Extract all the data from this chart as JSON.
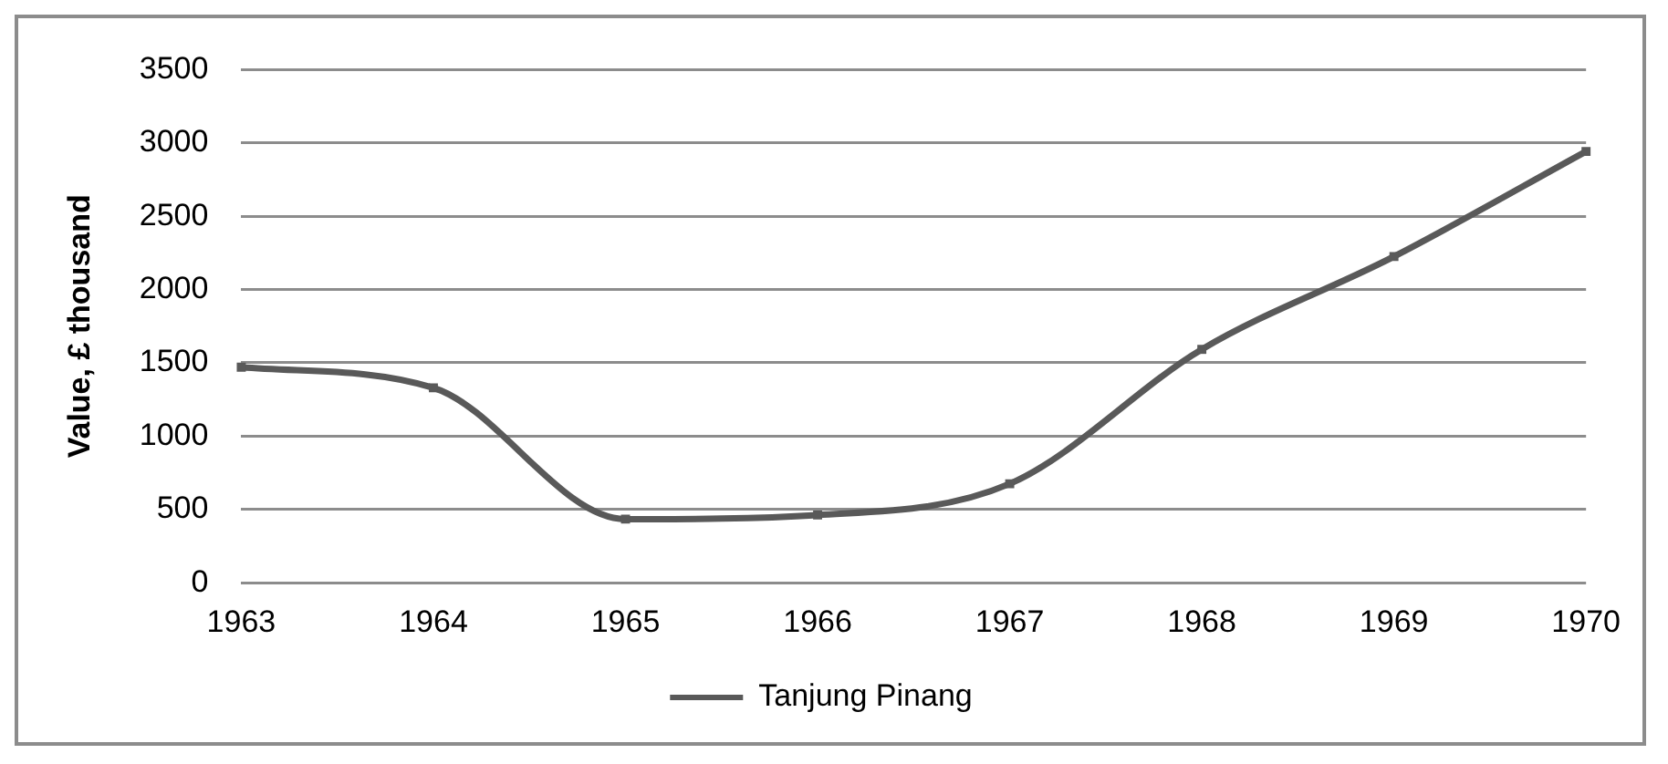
{
  "chart_data": {
    "type": "line",
    "ylabel": "Value, £ thousand",
    "categories": [
      "1963",
      "1964",
      "1965",
      "1966",
      "1967",
      "1968",
      "1969",
      "1970"
    ],
    "series": [
      {
        "name": "Tanjung Pinang",
        "color": "#595959",
        "values": [
          1470,
          1330,
          434,
          462,
          675,
          1592,
          2225,
          2942
        ]
      }
    ],
    "ylim": [
      0,
      3500
    ],
    "yticks": [
      0,
      500,
      1000,
      1500,
      2000,
      2500,
      3000,
      3500
    ],
    "grid": "y",
    "legend": "bottom",
    "marker": "square",
    "line_style": "solid"
  }
}
